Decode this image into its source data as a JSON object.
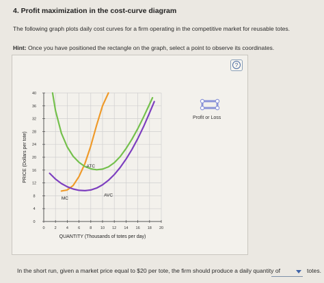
{
  "question": {
    "heading": "4. Profit maximization in the cost-curve diagram",
    "intro": "The following graph plots daily cost curves for a firm operating in the competitive market for reusable totes.",
    "hint_label": "Hint:",
    "hint_text": "Once you have positioned the rectangle on the graph, select a point to observe its coordinates.",
    "help_symbol": "?"
  },
  "palette": {
    "tool_label": "Profit or Loss",
    "tool_color": "#8a93d8",
    "tool_icon": "rectangle-tool-icon"
  },
  "prompt": {
    "text": "In the short run, given a market price equal to $20 per tote, the firm should produce a daily quantity of",
    "answer_value": "",
    "after_text": "totes."
  },
  "chart_data": {
    "type": "line",
    "xlabel": "QUANTITY (Thousands of totes per day)",
    "ylabel": "PRICE (Dollars per tote)",
    "xlim": [
      0,
      20
    ],
    "ylim": [
      0,
      40
    ],
    "xticks": [
      0,
      2,
      4,
      6,
      8,
      10,
      12,
      14,
      16,
      18,
      20
    ],
    "yticks": [
      0,
      4,
      8,
      12,
      16,
      20,
      24,
      28,
      32,
      36,
      40
    ],
    "grid": true,
    "series": [
      {
        "name": "MC",
        "color": "#ef9a2a",
        "x": [
          3.0,
          4.0,
          5.0,
          6.0,
          7.0,
          8.0,
          9.0,
          10.0,
          11.0
        ],
        "y": [
          9.5,
          9.8,
          11.2,
          14.0,
          18.0,
          23.5,
          30.0,
          36.0,
          41.0
        ]
      },
      {
        "name": "ATC",
        "color": "#74c04c",
        "x": [
          1.5,
          2.0,
          3.0,
          4.0,
          5.0,
          6.0,
          7.0,
          8.0,
          9.0,
          10.0,
          11.0,
          12.0,
          13.0,
          14.0,
          15.0,
          16.0,
          17.0,
          18.5
        ],
        "y": [
          40.0,
          34.5,
          27.5,
          23.2,
          20.3,
          18.4,
          17.1,
          16.4,
          16.1,
          16.3,
          17.0,
          18.3,
          20.2,
          22.7,
          25.6,
          28.9,
          32.6,
          38.5
        ]
      },
      {
        "name": "AVC",
        "color": "#7d3fbf",
        "x": [
          1.0,
          2.0,
          3.0,
          4.0,
          5.0,
          6.0,
          7.0,
          8.0,
          9.0,
          10.0,
          11.0,
          12.0,
          13.0,
          14.0,
          15.0,
          16.0,
          17.0,
          18.0,
          18.8
        ],
        "y": [
          15.0,
          13.2,
          11.8,
          10.8,
          10.1,
          9.7,
          9.6,
          9.8,
          10.4,
          11.4,
          12.8,
          14.6,
          16.8,
          19.4,
          22.4,
          25.8,
          29.6,
          33.8,
          37.3
        ]
      }
    ],
    "annotations": [
      {
        "text": "ATC",
        "x": 8.0,
        "y": 16.8
      },
      {
        "text": "MC",
        "x": 3.6,
        "y": 6.8
      },
      {
        "text": "AVC",
        "x": 11.0,
        "y": 7.8
      }
    ]
  }
}
